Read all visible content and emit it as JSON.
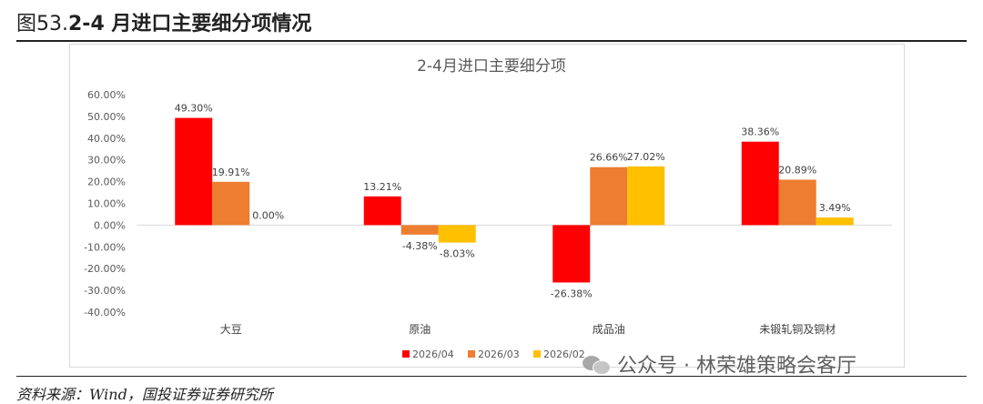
{
  "figure": {
    "prefix": "图53.",
    "title": "2-4 月进口主要细分项情况",
    "source": "资料来源：Wind，国投证券证券研究所",
    "watermark": "公众号 · 林荣雄策略会客厅",
    "watermark_icon": "wechat-icon"
  },
  "chart_data": {
    "type": "bar",
    "title": "2-4月进口主要细分项",
    "categories": [
      "大豆",
      "原油",
      "成品油",
      "未锻轧铜及铜材"
    ],
    "series": [
      {
        "name": "2026/04",
        "color": "#ff0000",
        "values": [
          49.3,
          13.21,
          -26.38,
          38.36
        ],
        "labels": [
          "49.30%",
          "13.21%",
          "-26.38%",
          "38.36%"
        ]
      },
      {
        "name": "2026/03",
        "color": "#ed7d31",
        "values": [
          19.91,
          -4.38,
          26.66,
          20.89
        ],
        "labels": [
          "19.91%",
          "-4.38%",
          "26.66%",
          "20.89%"
        ]
      },
      {
        "name": "2026/02",
        "color": "#ffc000",
        "values": [
          0.0,
          -8.03,
          27.02,
          3.49
        ],
        "labels": [
          "0.00%",
          "-8.03%",
          "27.02%",
          "3.49%"
        ]
      }
    ],
    "ylim": [
      -40,
      60
    ],
    "yticks": [
      60,
      50,
      40,
      30,
      20,
      10,
      0,
      -10,
      -20,
      -30,
      -40
    ],
    "ytick_labels": [
      "60.00%",
      "50.00%",
      "40.00%",
      "30.00%",
      "20.00%",
      "10.00%",
      "0.00%",
      "-10.00%",
      "-20.00%",
      "-30.00%",
      "-40.00%"
    ],
    "grid": false,
    "legend": "bottom"
  }
}
